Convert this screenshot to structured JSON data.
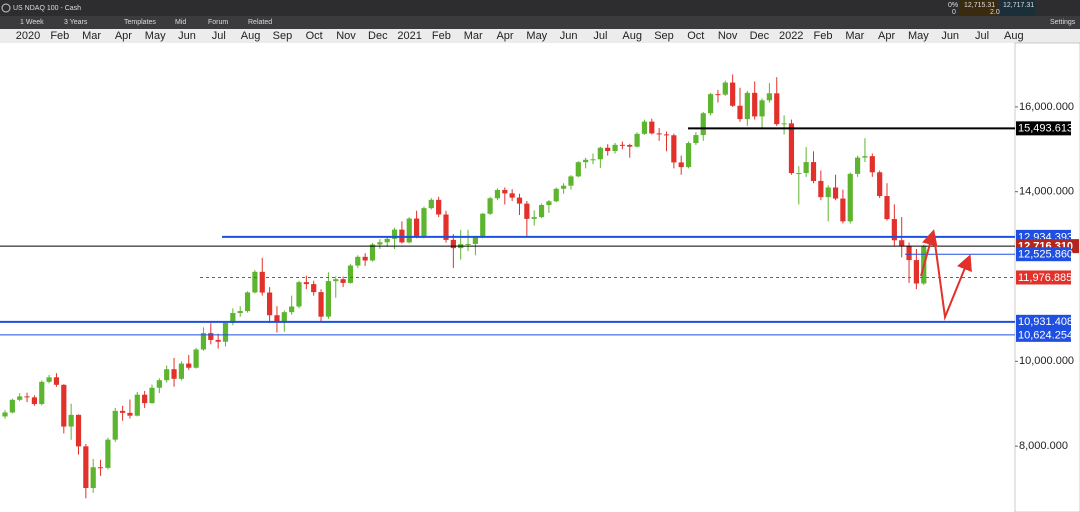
{
  "toolbar": {
    "instrument": "US NDAQ 100 - Cash",
    "interval": "1 Week",
    "range": "3 Years",
    "templates": "Templates",
    "price_type": "Mid",
    "forum": "Forum",
    "related": "Related",
    "settings": "Settings",
    "change": "0%",
    "change_value": "0",
    "sell": "12,715.31",
    "buy": "12,717.31",
    "spread": "2.00"
  },
  "chart_data": {
    "type": "candlestick",
    "categories": [
      "2020",
      "Feb",
      "Mar",
      "Apr",
      "May",
      "Jun",
      "Jul",
      "Aug",
      "Sep",
      "Oct",
      "Nov",
      "Dec",
      "2021",
      "Feb",
      "Mar",
      "Apr",
      "May",
      "Jun",
      "Jul",
      "Aug",
      "Sep",
      "Oct",
      "Nov",
      "Dec",
      "2022",
      "Feb",
      "Mar",
      "Apr",
      "May",
      "Jun",
      "Jul",
      "Aug"
    ],
    "up_color": "#5db52f",
    "down_color": "#e2302a",
    "ylim": [
      6447,
      17506
    ],
    "yticks": [
      {
        "value": 8000,
        "label": "8,000.000"
      },
      {
        "value": 10000,
        "label": "10,000.000"
      },
      {
        "value": 14000,
        "label": "14,000.000"
      },
      {
        "value": 16000,
        "label": "16,000.000"
      }
    ],
    "levels": [
      {
        "value": 15493.613,
        "label": "15,493.613",
        "color": "#000000",
        "style": "solid"
      },
      {
        "value": 12934.393,
        "label": "12,934.393",
        "color": "#1f4fe0",
        "style": "solid"
      },
      {
        "value": 12716.31,
        "label": "12,716.310",
        "color": "#000000",
        "style": "current"
      },
      {
        "value": 12525.86,
        "label": "12,525.860",
        "color": "#1f4fe0",
        "style": "thin"
      },
      {
        "value": 11976.885,
        "label": "11,976.885",
        "color": "#e2302a",
        "style": "dotted"
      },
      {
        "value": 10931.408,
        "label": "10,931.408",
        "color": "#1f4fe0",
        "style": "solid"
      },
      {
        "value": 10624.254,
        "label": "10,624.254",
        "color": "#1f4fe0",
        "style": "thin"
      }
    ],
    "candles": [
      [
        8700,
        8850,
        8650,
        8794
      ],
      [
        8794,
        9120,
        8770,
        9092
      ],
      [
        9092,
        9250,
        9060,
        9173
      ],
      [
        9173,
        9260,
        9040,
        9150
      ],
      [
        9150,
        9200,
        8950,
        8992
      ],
      [
        8992,
        9550,
        8960,
        9516
      ],
      [
        9516,
        9680,
        9480,
        9623
      ],
      [
        9623,
        9720,
        9400,
        9446
      ],
      [
        9446,
        9460,
        8300,
        8462
      ],
      [
        8462,
        9000,
        8150,
        8738
      ],
      [
        8738,
        8750,
        7800,
        7995
      ],
      [
        7995,
        8050,
        6771,
        7012
      ],
      [
        7012,
        7700,
        6900,
        7502
      ],
      [
        7502,
        7680,
        7300,
        7487
      ],
      [
        7487,
        8200,
        7450,
        8153
      ],
      [
        8153,
        8900,
        8100,
        8832
      ],
      [
        8832,
        8950,
        8600,
        8785
      ],
      [
        8785,
        9100,
        8650,
        8718
      ],
      [
        8718,
        9280,
        8700,
        9213
      ],
      [
        9213,
        9300,
        8900,
        9014
      ],
      [
        9014,
        9450,
        9000,
        9377
      ],
      [
        9377,
        9600,
        9250,
        9555
      ],
      [
        9555,
        9900,
        9500,
        9814
      ],
      [
        9814,
        10080,
        9400,
        9588
      ],
      [
        9588,
        10000,
        9550,
        9947
      ],
      [
        9947,
        10150,
        9800,
        9849
      ],
      [
        9849,
        10320,
        9830,
        10279
      ],
      [
        10279,
        10800,
        10250,
        10665
      ],
      [
        10665,
        10900,
        10400,
        10504
      ],
      [
        10504,
        10650,
        10300,
        10462
      ],
      [
        10462,
        10950,
        10350,
        10905
      ],
      [
        10905,
        11250,
        10850,
        11139
      ],
      [
        11139,
        11300,
        11050,
        11185
      ],
      [
        11185,
        11650,
        11150,
        11625
      ],
      [
        11625,
        12150,
        11600,
        12110
      ],
      [
        12110,
        12440,
        11550,
        11622
      ],
      [
        11622,
        11750,
        10900,
        11087
      ],
      [
        11087,
        11300,
        10680,
        10938
      ],
      [
        10938,
        11200,
        10700,
        11159
      ],
      [
        11159,
        11550,
        11100,
        11293
      ],
      [
        11293,
        11900,
        11250,
        11866
      ],
      [
        11866,
        12020,
        11700,
        11821
      ],
      [
        11821,
        11900,
        11550,
        11632
      ],
      [
        11632,
        11700,
        10950,
        11053
      ],
      [
        11053,
        12100,
        11000,
        11891
      ],
      [
        11891,
        12000,
        11500,
        11937
      ],
      [
        11937,
        12000,
        11750,
        11849
      ],
      [
        11849,
        12290,
        11830,
        12258
      ],
      [
        12258,
        12500,
        12200,
        12464
      ],
      [
        12464,
        12550,
        12250,
        12378
      ],
      [
        12378,
        12790,
        12350,
        12756
      ],
      [
        12756,
        12880,
        12650,
        12807
      ],
      [
        12807,
        12950,
        12700,
        12888
      ],
      [
        12888,
        13150,
        12650,
        13105
      ],
      [
        13105,
        13300,
        12780,
        12804
      ],
      [
        12804,
        13400,
        12780,
        13367
      ],
      [
        13367,
        13550,
        12900,
        12925
      ],
      [
        12925,
        13650,
        12900,
        13612
      ],
      [
        13612,
        13850,
        13580,
        13808
      ],
      [
        13808,
        13880,
        13400,
        13462
      ],
      [
        13462,
        13550,
        12800,
        12863
      ],
      [
        12863,
        13000,
        12200,
        12669
      ],
      [
        12669,
        13100,
        12400,
        12763
      ],
      [
        12763,
        13100,
        12600,
        12768
      ],
      [
        12768,
        12960,
        12500,
        12929
      ],
      [
        12929,
        13500,
        12900,
        13480
      ],
      [
        13480,
        13880,
        13450,
        13845
      ],
      [
        13845,
        14080,
        13800,
        14041
      ],
      [
        14041,
        14100,
        13700,
        13960
      ],
      [
        13960,
        14060,
        13780,
        13860
      ],
      [
        13860,
        13950,
        13450,
        13719
      ],
      [
        13719,
        13780,
        12950,
        13359
      ],
      [
        13359,
        13560,
        13200,
        13400
      ],
      [
        13400,
        13720,
        13380,
        13686
      ],
      [
        13686,
        13800,
        13500,
        13773
      ],
      [
        13773,
        14100,
        13750,
        14069
      ],
      [
        14069,
        14200,
        13950,
        14141
      ],
      [
        14141,
        14390,
        14050,
        14361
      ],
      [
        14361,
        14720,
        14340,
        14696
      ],
      [
        14696,
        14800,
        14550,
        14753
      ],
      [
        14753,
        14900,
        14650,
        14764
      ],
      [
        14764,
        15060,
        14560,
        15036
      ],
      [
        15036,
        15120,
        14850,
        14959
      ],
      [
        14959,
        15150,
        14900,
        15105
      ],
      [
        15105,
        15180,
        15000,
        15101
      ],
      [
        15101,
        15130,
        14800,
        15061
      ],
      [
        15061,
        15400,
        15040,
        15364
      ],
      [
        15364,
        15700,
        15340,
        15652
      ],
      [
        15652,
        15720,
        15350,
        15375
      ],
      [
        15375,
        15500,
        15200,
        15351
      ],
      [
        15351,
        15420,
        14950,
        15330
      ],
      [
        15330,
        15370,
        14550,
        14690
      ],
      [
        14690,
        14850,
        14400,
        14579
      ],
      [
        14579,
        15180,
        14550,
        15146
      ],
      [
        15146,
        15400,
        15100,
        15335
      ],
      [
        15335,
        15880,
        15200,
        15850
      ],
      [
        15850,
        16330,
        15800,
        16300
      ],
      [
        16300,
        16400,
        16100,
        16289
      ],
      [
        16289,
        16620,
        16260,
        16573
      ],
      [
        16573,
        16764,
        16000,
        16026
      ],
      [
        16026,
        16450,
        15650,
        15712
      ],
      [
        15712,
        16380,
        15550,
        16331
      ],
      [
        16331,
        16600,
        15700,
        15775
      ],
      [
        15775,
        16200,
        15500,
        16155
      ],
      [
        16155,
        16560,
        16100,
        16320
      ],
      [
        16320,
        16700,
        15550,
        15592
      ],
      [
        15592,
        15800,
        15350,
        15611
      ],
      [
        15611,
        15700,
        14400,
        14438
      ],
      [
        14438,
        14600,
        13700,
        14440
      ],
      [
        14440,
        15050,
        14350,
        14698
      ],
      [
        14698,
        14950,
        14200,
        14253
      ],
      [
        14253,
        14500,
        13800,
        13872
      ],
      [
        13872,
        14150,
        13300,
        14099
      ],
      [
        14099,
        14400,
        13800,
        13838
      ],
      [
        13838,
        14050,
        13250,
        13301
      ],
      [
        13301,
        14450,
        13250,
        14420
      ],
      [
        14420,
        14850,
        14350,
        14804
      ],
      [
        14804,
        15260,
        14700,
        14838
      ],
      [
        14838,
        14900,
        14350,
        14457
      ],
      [
        14457,
        14500,
        13850,
        13897
      ],
      [
        13897,
        14200,
        13320,
        13354
      ],
      [
        13354,
        13700,
        12720,
        12855
      ],
      [
        12855,
        13400,
        12450,
        12721
      ],
      [
        12721,
        12800,
        11850,
        12387
      ],
      [
        12387,
        12650,
        11700,
        11835
      ],
      [
        11835,
        12750,
        11800,
        12716
      ]
    ]
  }
}
